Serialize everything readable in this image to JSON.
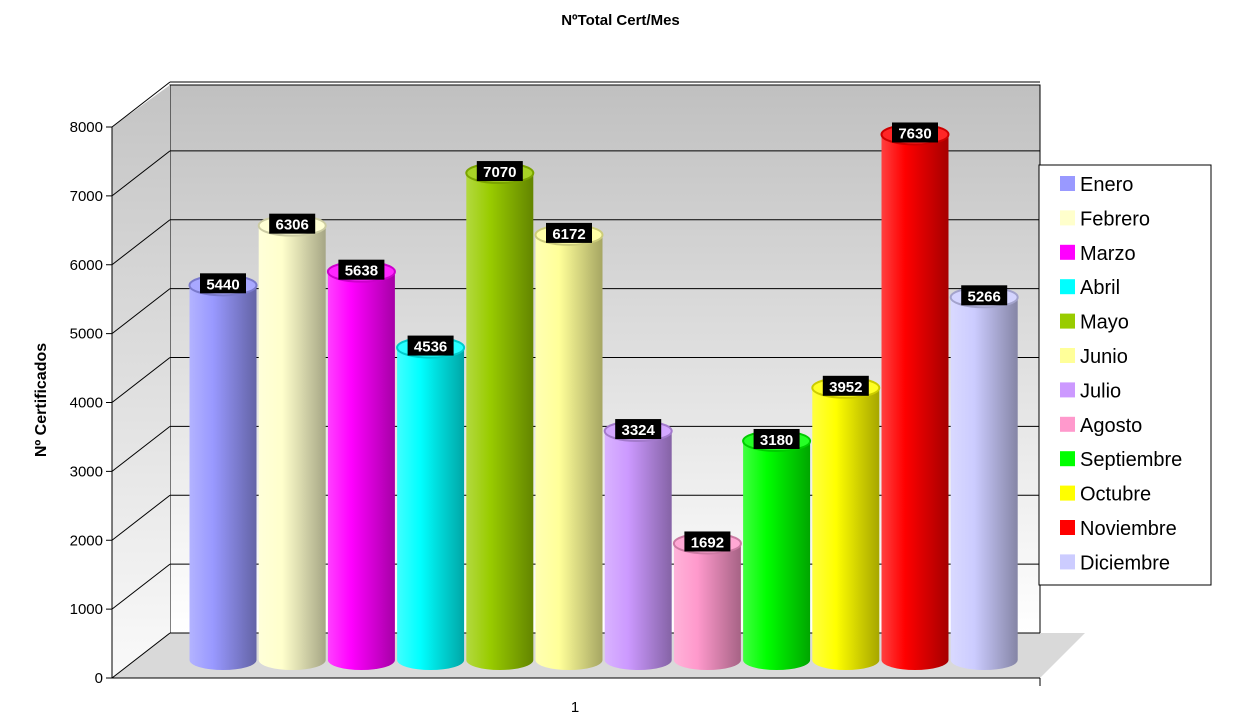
{
  "chart_data": {
    "type": "bar",
    "title": "NºTotal Cert/Mes",
    "xlabel": "",
    "ylabel": "Nº  Certificados",
    "categories": [
      "1"
    ],
    "series": [
      {
        "name": "Enero",
        "values": [
          5440
        ],
        "color": "#9999ff"
      },
      {
        "name": "Febrero",
        "values": [
          6306
        ],
        "color": "#ffffcc"
      },
      {
        "name": "Marzo",
        "values": [
          5638
        ],
        "color": "#ff00ff"
      },
      {
        "name": "Abril",
        "values": [
          4536
        ],
        "color": "#00ffff"
      },
      {
        "name": "Mayo",
        "values": [
          7070
        ],
        "color": "#99cc00"
      },
      {
        "name": "Junio",
        "values": [
          6172
        ],
        "color": "#ffff99"
      },
      {
        "name": "Julio",
        "values": [
          3324
        ],
        "color": "#cc99ff"
      },
      {
        "name": "Agosto",
        "values": [
          1692
        ],
        "color": "#ff99cc"
      },
      {
        "name": "Septiembre",
        "values": [
          3180
        ],
        "color": "#00ff00"
      },
      {
        "name": "Octubre",
        "values": [
          3952
        ],
        "color": "#ffff00"
      },
      {
        "name": "Noviembre",
        "values": [
          7630
        ],
        "color": "#ff0000"
      },
      {
        "name": "Diciembre",
        "values": [
          5266
        ],
        "color": "#ccccff"
      }
    ],
    "ylim": [
      0,
      8000
    ],
    "yticks": [
      0,
      1000,
      2000,
      3000,
      4000,
      5000,
      6000,
      7000,
      8000
    ],
    "grid": true,
    "legend": "right",
    "data_labels": true,
    "style": "3d-cylinder"
  }
}
